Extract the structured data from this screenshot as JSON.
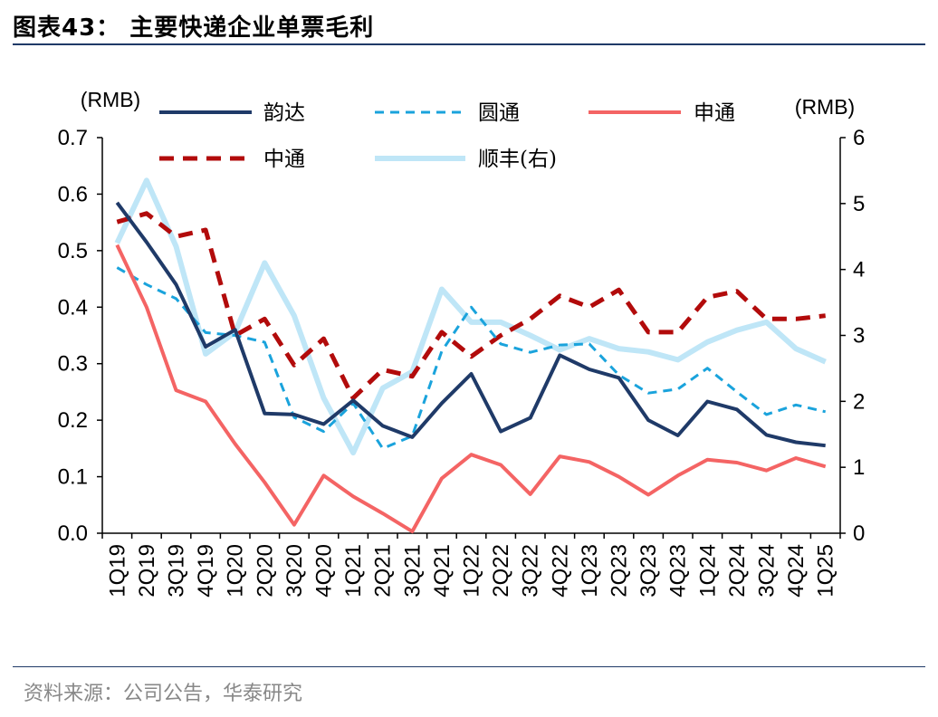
{
  "figure": {
    "title": "图表43： 主要快递企业单票毛利",
    "source": "资料来源：公司公告，华泰研究"
  },
  "chart_data": {
    "type": "line",
    "categories": [
      "1Q19",
      "2Q19",
      "3Q19",
      "4Q19",
      "1Q20",
      "2Q20",
      "3Q20",
      "4Q20",
      "1Q21",
      "2Q21",
      "3Q21",
      "4Q21",
      "1Q22",
      "2Q22",
      "3Q22",
      "4Q22",
      "1Q23",
      "2Q23",
      "3Q23",
      "4Q23",
      "1Q24",
      "2Q24",
      "3Q24",
      "4Q24",
      "1Q25"
    ],
    "y_left": {
      "unit": "(RMB)",
      "range": [
        0,
        0.7
      ],
      "ticks": [
        "0.0",
        "0.1",
        "0.2",
        "0.3",
        "0.4",
        "0.5",
        "0.6",
        "0.7"
      ]
    },
    "y_right": {
      "unit": "(RMB)",
      "range": [
        0,
        6
      ],
      "ticks": [
        "0",
        "1",
        "2",
        "3",
        "4",
        "5",
        "6"
      ]
    },
    "grid": false,
    "legend_position": "top",
    "series": [
      {
        "name": "韵达",
        "axis": "left",
        "color": "#1f3a68",
        "style": "solid",
        "values": [
          0.585,
          0.515,
          0.44,
          0.33,
          0.36,
          0.212,
          0.21,
          0.193,
          0.235,
          0.19,
          0.17,
          0.23,
          0.282,
          0.18,
          0.204,
          0.315,
          0.29,
          0.275,
          0.2,
          0.173,
          0.233,
          0.219,
          0.174,
          0.161,
          0.155
        ]
      },
      {
        "name": "圆通",
        "axis": "left",
        "color": "#1aa3dc",
        "style": "dashed",
        "values": [
          0.47,
          0.44,
          0.415,
          0.355,
          0.35,
          0.338,
          0.205,
          0.18,
          0.23,
          0.15,
          0.172,
          0.322,
          0.4,
          0.335,
          0.32,
          0.333,
          0.335,
          0.28,
          0.248,
          0.255,
          0.292,
          0.25,
          0.21,
          0.227,
          0.215
        ]
      },
      {
        "name": "申通",
        "axis": "left",
        "color": "#f46464",
        "style": "solid",
        "values": [
          0.51,
          0.4,
          0.253,
          0.233,
          0.158,
          0.09,
          0.015,
          0.102,
          0.065,
          0.035,
          0.003,
          0.097,
          0.139,
          0.121,
          0.069,
          0.136,
          0.126,
          0.1,
          0.068,
          0.102,
          0.13,
          0.125,
          0.111,
          0.133,
          0.118
        ]
      },
      {
        "name": "中通",
        "axis": "right",
        "color": "#b20b0b",
        "style": "dashed",
        "values": [
          4.72,
          4.85,
          4.5,
          4.6,
          3.0,
          3.25,
          2.55,
          2.95,
          2.05,
          2.48,
          2.38,
          3.05,
          2.68,
          3.0,
          3.25,
          3.6,
          3.43,
          3.69,
          3.05,
          3.05,
          3.58,
          3.67,
          3.25,
          3.25,
          3.3
        ]
      },
      {
        "name": "顺丰(右)",
        "axis": "right",
        "color": "#bfe6f7",
        "style": "solid-thick",
        "values": [
          4.4,
          5.35,
          4.35,
          2.72,
          3.05,
          4.1,
          3.3,
          2.05,
          1.22,
          2.2,
          2.45,
          3.7,
          3.2,
          3.2,
          3.0,
          2.78,
          2.95,
          2.8,
          2.75,
          2.63,
          2.9,
          3.08,
          3.2,
          2.8,
          2.6
        ]
      }
    ]
  }
}
